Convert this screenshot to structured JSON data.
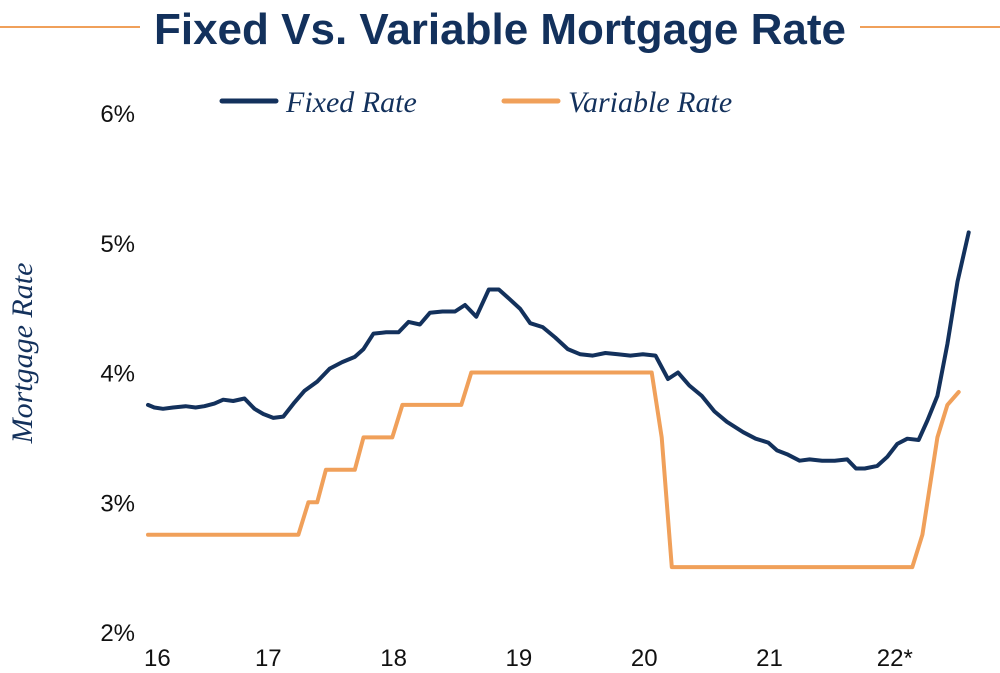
{
  "colors": {
    "fixed": "#13315c",
    "variable": "#f0a05a",
    "title": "#13315c",
    "rule": "#f0a05a"
  },
  "chart_data": {
    "type": "line",
    "title": "Fixed Vs. Variable Mortgage Rate",
    "xlabel": "",
    "ylabel": "Mortgage Rate",
    "x_ticks": [
      "16",
      "17",
      "18",
      "19",
      "20",
      "21",
      "22*"
    ],
    "y_ticks": [
      "2%",
      "3%",
      "4%",
      "5%",
      "6%"
    ],
    "xlim": [
      2016,
      2022.6
    ],
    "ylim": [
      2,
      6
    ],
    "grid": false,
    "legend_position": "top",
    "series": [
      {
        "name": "Fixed Rate",
        "color": "#13315c",
        "points": [
          [
            2016.0,
            3.75
          ],
          [
            2016.05,
            3.73
          ],
          [
            2016.12,
            3.72
          ],
          [
            2016.2,
            3.73
          ],
          [
            2016.3,
            3.74
          ],
          [
            2016.38,
            3.73
          ],
          [
            2016.45,
            3.74
          ],
          [
            2016.53,
            3.76
          ],
          [
            2016.6,
            3.79
          ],
          [
            2016.68,
            3.78
          ],
          [
            2016.77,
            3.8
          ],
          [
            2016.85,
            3.72
          ],
          [
            2016.92,
            3.68
          ],
          [
            2017.0,
            3.65
          ],
          [
            2017.08,
            3.66
          ],
          [
            2017.17,
            3.77
          ],
          [
            2017.25,
            3.86
          ],
          [
            2017.35,
            3.93
          ],
          [
            2017.45,
            4.03
          ],
          [
            2017.55,
            4.08
          ],
          [
            2017.65,
            4.12
          ],
          [
            2017.72,
            4.18
          ],
          [
            2017.8,
            4.3
          ],
          [
            2017.9,
            4.31
          ],
          [
            2018.0,
            4.31
          ],
          [
            2018.08,
            4.39
          ],
          [
            2018.17,
            4.37
          ],
          [
            2018.25,
            4.46
          ],
          [
            2018.35,
            4.47
          ],
          [
            2018.45,
            4.47
          ],
          [
            2018.53,
            4.52
          ],
          [
            2018.62,
            4.43
          ],
          [
            2018.72,
            4.64
          ],
          [
            2018.8,
            4.64
          ],
          [
            2018.88,
            4.57
          ],
          [
            2018.97,
            4.49
          ],
          [
            2019.05,
            4.38
          ],
          [
            2019.15,
            4.35
          ],
          [
            2019.25,
            4.27
          ],
          [
            2019.35,
            4.18
          ],
          [
            2019.45,
            4.14
          ],
          [
            2019.55,
            4.13
          ],
          [
            2019.65,
            4.15
          ],
          [
            2019.75,
            4.14
          ],
          [
            2019.85,
            4.13
          ],
          [
            2019.95,
            4.14
          ],
          [
            2020.05,
            4.13
          ],
          [
            2020.15,
            3.95
          ],
          [
            2020.23,
            4.0
          ],
          [
            2020.32,
            3.9
          ],
          [
            2020.42,
            3.82
          ],
          [
            2020.52,
            3.7
          ],
          [
            2020.62,
            3.62
          ],
          [
            2020.75,
            3.54
          ],
          [
            2020.85,
            3.49
          ],
          [
            2020.95,
            3.46
          ],
          [
            2021.02,
            3.4
          ],
          [
            2021.1,
            3.37
          ],
          [
            2021.2,
            3.32
          ],
          [
            2021.28,
            3.33
          ],
          [
            2021.38,
            3.32
          ],
          [
            2021.48,
            3.32
          ],
          [
            2021.58,
            3.33
          ],
          [
            2021.65,
            3.26
          ],
          [
            2021.72,
            3.26
          ],
          [
            2021.82,
            3.28
          ],
          [
            2021.9,
            3.35
          ],
          [
            2021.98,
            3.45
          ],
          [
            2022.06,
            3.49
          ],
          [
            2022.15,
            3.48
          ],
          [
            2022.22,
            3.63
          ],
          [
            2022.3,
            3.82
          ],
          [
            2022.38,
            4.22
          ],
          [
            2022.46,
            4.7
          ],
          [
            2022.55,
            5.08
          ]
        ]
      },
      {
        "name": "Variable Rate",
        "color": "#f0a05a",
        "points": [
          [
            2016.0,
            2.75
          ],
          [
            2017.2,
            2.75
          ],
          [
            2017.28,
            3.0
          ],
          [
            2017.35,
            3.0
          ],
          [
            2017.42,
            3.25
          ],
          [
            2017.65,
            3.25
          ],
          [
            2017.72,
            3.5
          ],
          [
            2017.95,
            3.5
          ],
          [
            2018.03,
            3.75
          ],
          [
            2018.5,
            3.75
          ],
          [
            2018.58,
            4.0
          ],
          [
            2020.02,
            4.0
          ],
          [
            2020.1,
            3.5
          ],
          [
            2020.18,
            2.5
          ],
          [
            2022.1,
            2.5
          ],
          [
            2022.18,
            2.75
          ],
          [
            2022.3,
            3.5
          ],
          [
            2022.38,
            3.75
          ],
          [
            2022.47,
            3.85
          ]
        ]
      }
    ]
  }
}
